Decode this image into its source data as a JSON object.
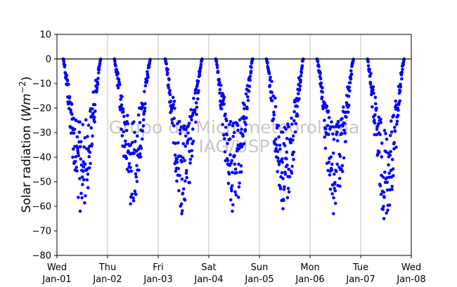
{
  "chart_data": {
    "type": "scatter",
    "ylabel_prefix": "Solar radiation (",
    "ylabel_math": "Wm",
    "ylabel_exp": "−2",
    "ylabel_suffix": ")",
    "ylim": [
      -80,
      10
    ],
    "yticks": [
      10,
      0,
      -10,
      -20,
      -30,
      -40,
      -50,
      -60,
      -70,
      -80
    ],
    "xlim": [
      "Jan-01",
      "Jan-08"
    ],
    "xticks": [
      {
        "day": "Wed",
        "date": "Jan-01"
      },
      {
        "day": "Thu",
        "date": "Jan-02"
      },
      {
        "day": "Fri",
        "date": "Jan-03"
      },
      {
        "day": "Sat",
        "date": "Jan-04"
      },
      {
        "day": "Sun",
        "date": "Jan-05"
      },
      {
        "day": "Mon",
        "date": "Jan-06"
      },
      {
        "day": "Tue",
        "date": "Jan-07"
      },
      {
        "day": "Wed",
        "date": "Jan-08"
      }
    ],
    "grid": "x",
    "zero_line": 0,
    "marker_color": "#0000ff",
    "watermark": [
      "Grupo de Micrometeorologia",
      "IAG/USP"
    ],
    "days": [
      {
        "date": "Jan-01",
        "start_hour": 3.0,
        "end_hour": 20.8,
        "min": -62
      },
      {
        "date": "Jan-02",
        "start_hour": 3.2,
        "end_hour": 20.3,
        "min": -59
      },
      {
        "date": "Jan-03",
        "start_hour": 3.3,
        "end_hour": 20.8,
        "min": -63
      },
      {
        "date": "Jan-04",
        "start_hour": 3.3,
        "end_hour": 20.8,
        "min": -62
      },
      {
        "date": "Jan-05",
        "start_hour": 3.3,
        "end_hour": 20.8,
        "min": -61
      },
      {
        "date": "Jan-06",
        "start_hour": 3.3,
        "end_hour": 20.6,
        "min": -63
      },
      {
        "date": "Jan-07",
        "start_hour": 3.2,
        "end_hour": 20.6,
        "min": -65
      }
    ]
  }
}
